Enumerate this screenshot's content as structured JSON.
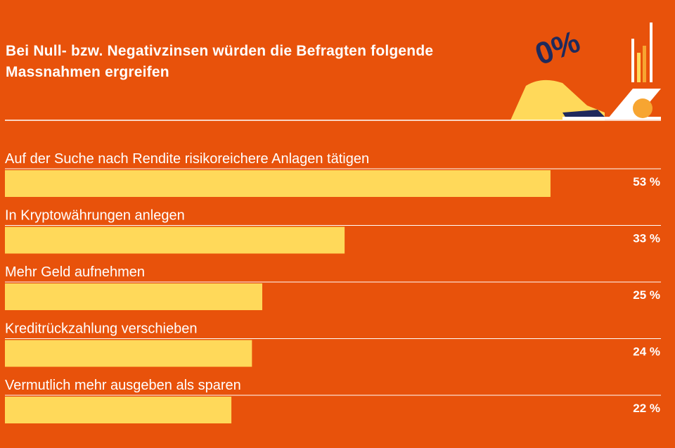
{
  "chart_data": {
    "type": "bar",
    "title": "Bei Null- bzw. Negativzinsen würden die Befragten folgende Massnahmen ergreifen",
    "illustration_text": "0%",
    "categories": [
      "Auf der Suche nach Rendite risikoreichere Anlagen tätigen",
      "In Kryptowährungen anlegen",
      "Mehr Geld aufnehmen",
      "Kreditrückzahlung verschieben",
      "Vermutlich mehr ausgeben als sparen"
    ],
    "values": [
      53,
      33,
      25,
      24,
      22
    ],
    "value_labels": [
      "53 %",
      "33 %",
      "25 %",
      "24 %",
      "22 %"
    ],
    "color": "#ffd95a"
  }
}
